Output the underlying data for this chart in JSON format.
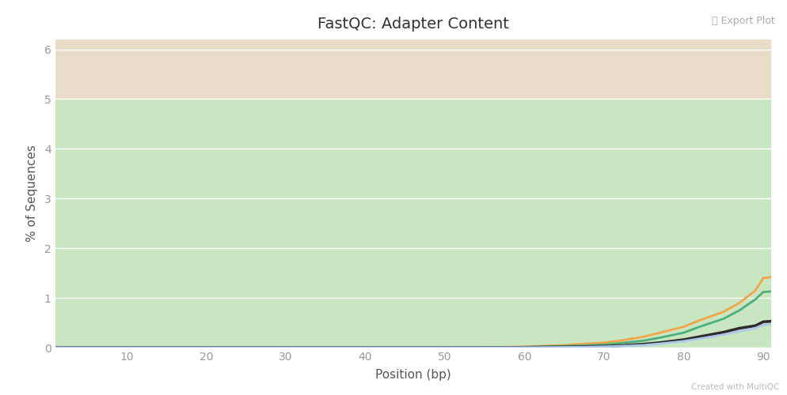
{
  "title": "FastQC: Adapter Content",
  "xlabel": "Position (bp)",
  "ylabel": "% of Sequences",
  "watermark": "Created with MultiQC",
  "export_label": "⤓ Export Plot",
  "xlim": [
    1,
    91
  ],
  "ylim": [
    0,
    6.2
  ],
  "yticks": [
    0,
    1,
    2,
    3,
    4,
    5,
    6
  ],
  "xticks": [
    10,
    20,
    30,
    40,
    50,
    60,
    70,
    80,
    90
  ],
  "bg_green_ymin": 0,
  "bg_green_ymax": 5,
  "bg_tan_ymin": 5,
  "bg_tan_ymax": 6.2,
  "bg_green_color": "#c8e6c0",
  "bg_tan_color": "#e8dcc8",
  "grid_color": "#ffffff",
  "lines": [
    {
      "color": "#f5a44a",
      "linewidth": 2.0,
      "values_x": [
        1,
        5,
        10,
        15,
        20,
        25,
        30,
        35,
        40,
        45,
        50,
        55,
        60,
        62,
        65,
        67,
        70,
        72,
        75,
        77,
        80,
        82,
        85,
        87,
        89,
        90,
        91
      ],
      "values_y": [
        0.0,
        0.0,
        0.0,
        0.0,
        0.0,
        0.0,
        0.0,
        0.0,
        0.0,
        0.0,
        0.0,
        0.0,
        0.02,
        0.03,
        0.05,
        0.07,
        0.1,
        0.14,
        0.22,
        0.3,
        0.42,
        0.55,
        0.72,
        0.9,
        1.15,
        1.4,
        1.42
      ]
    },
    {
      "color": "#4daf7c",
      "linewidth": 2.0,
      "values_x": [
        1,
        5,
        10,
        15,
        20,
        25,
        30,
        35,
        40,
        45,
        50,
        55,
        60,
        62,
        65,
        67,
        70,
        72,
        75,
        77,
        80,
        82,
        85,
        87,
        89,
        90,
        91
      ],
      "values_y": [
        0.0,
        0.0,
        0.0,
        0.0,
        0.0,
        0.0,
        0.0,
        0.0,
        0.0,
        0.0,
        0.0,
        0.0,
        0.01,
        0.02,
        0.03,
        0.04,
        0.06,
        0.09,
        0.14,
        0.2,
        0.3,
        0.42,
        0.58,
        0.75,
        0.97,
        1.12,
        1.13
      ]
    },
    {
      "color": "#2c2c2c",
      "linewidth": 2.5,
      "values_x": [
        1,
        5,
        10,
        15,
        20,
        25,
        30,
        35,
        40,
        45,
        50,
        55,
        60,
        62,
        65,
        67,
        70,
        72,
        75,
        77,
        80,
        82,
        85,
        87,
        89,
        90,
        91
      ],
      "values_y": [
        0.0,
        0.0,
        0.0,
        0.0,
        0.0,
        0.0,
        0.0,
        0.0,
        0.0,
        0.0,
        0.0,
        0.0,
        0.005,
        0.008,
        0.012,
        0.018,
        0.028,
        0.04,
        0.07,
        0.1,
        0.16,
        0.22,
        0.31,
        0.39,
        0.44,
        0.52,
        0.53
      ]
    },
    {
      "color": "#aec6e8",
      "linewidth": 2.0,
      "values_x": [
        1,
        5,
        10,
        15,
        20,
        25,
        30,
        35,
        40,
        45,
        50,
        55,
        60,
        62,
        65,
        67,
        70,
        72,
        75,
        77,
        80,
        82,
        85,
        87,
        89,
        90,
        91
      ],
      "values_y": [
        0.0,
        0.0,
        0.0,
        0.0,
        0.0,
        0.0,
        0.0,
        0.0,
        0.0,
        0.0,
        0.0,
        0.0,
        0.003,
        0.005,
        0.008,
        0.012,
        0.02,
        0.03,
        0.05,
        0.08,
        0.13,
        0.18,
        0.26,
        0.33,
        0.39,
        0.46,
        0.47
      ]
    }
  ],
  "fig_bg": "#ffffff",
  "title_fontsize": 14,
  "label_fontsize": 11,
  "tick_fontsize": 10,
  "tick_color": "#999999",
  "label_color": "#555555",
  "title_color": "#333333"
}
